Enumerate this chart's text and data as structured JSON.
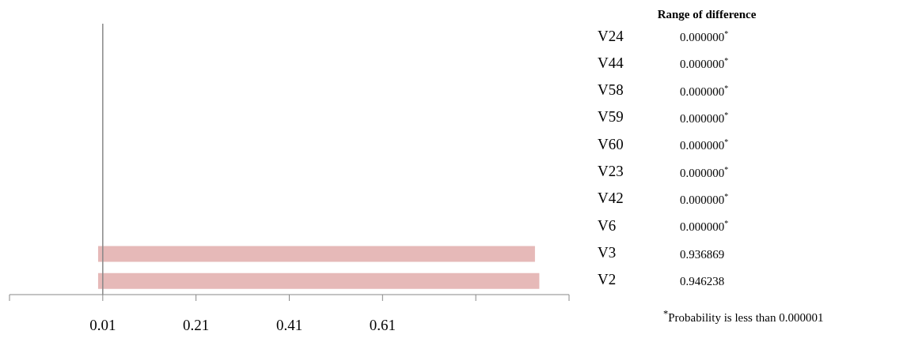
{
  "chart_data": {
    "type": "bar",
    "orientation": "horizontal",
    "categories": [
      "V24",
      "V44",
      "V58",
      "V59",
      "V60",
      "V23",
      "V42",
      "V6",
      "V3",
      "V2"
    ],
    "values": [
      0,
      0,
      0,
      0,
      0,
      0,
      0,
      0,
      0.936869,
      0.946238
    ],
    "color": "#e6b9b8",
    "value_labels": [
      "0.000000$^{*}$",
      "0.000000$^{*}$",
      "0.000000$^{*}$",
      "0.000000$^{*}$",
      "0.000000$^{*}$",
      "0.000000$^{*}$",
      "0.000000$^{*}$",
      "0.000000$^{*}$",
      "0.936869",
      "0.946238"
    ],
    "xlim": [
      -0.19,
      1.01
    ],
    "xticks": [
      {
        "value": -0.19,
        "label": null
      },
      0.01,
      0.21,
      0.41,
      0.61,
      {
        "value": 0.81,
        "label": null
      },
      {
        "value": 1.01,
        "label": null
      }
    ],
    "ref_lines": [
      {
        "axis": "x",
        "value": 0.01,
        "color": "#888888"
      }
    ],
    "annotations": [
      "Range of difference",
      "$^{*}$Probability is less than 0.000001"
    ],
    "data_labels": false
  }
}
